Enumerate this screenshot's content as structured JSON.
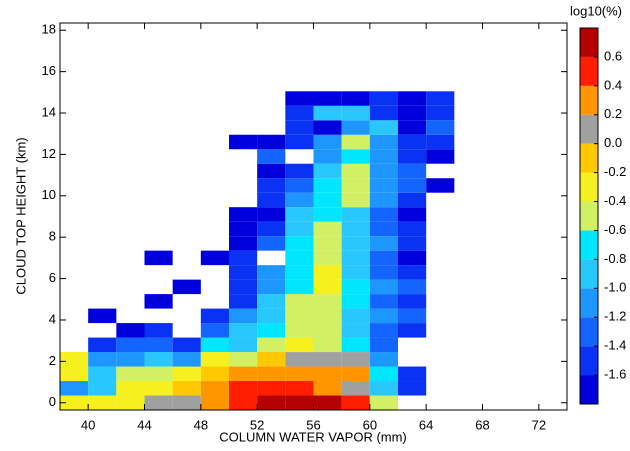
{
  "chart_data": {
    "type": "heatmap",
    "xlabel": "COLUMN WATER VAPOR (mm)",
    "ylabel": "CLOUD TOP HEIGHT (km)",
    "xlim": [
      38,
      74
    ],
    "xticks": [
      40,
      44,
      48,
      52,
      56,
      60,
      64,
      68,
      72
    ],
    "ylim": [
      -0.35,
      18.35
    ],
    "yticks": [
      0,
      2,
      4,
      6,
      8,
      10,
      12,
      14,
      16,
      18
    ],
    "xbins": [
      38,
      40,
      42,
      44,
      46,
      48,
      50,
      52,
      54,
      56,
      58,
      60,
      62,
      64,
      66
    ],
    "ybins": [
      -0.35,
      0.35,
      1.05,
      1.75,
      2.45,
      3.15,
      3.85,
      4.55,
      5.25,
      5.95,
      6.65,
      7.35,
      8.05,
      8.75,
      9.45,
      10.15,
      10.85,
      11.55,
      12.25,
      12.95,
      13.65,
      14.35,
      15.05
    ],
    "z": [
      [
        -0.3,
        -0.3,
        -0.3,
        0.1,
        0.1,
        0.3,
        0.5,
        0.7,
        0.7,
        0.7,
        0.5,
        -0.5,
        null,
        null
      ],
      [
        -1.1,
        -0.9,
        -0.3,
        -0.3,
        -0.1,
        0.3,
        0.5,
        0.5,
        0.5,
        0.3,
        0.1,
        -0.9,
        -1.5,
        null
      ],
      [
        -0.3,
        -0.9,
        -0.5,
        -0.5,
        -0.3,
        -0.1,
        0.3,
        0.3,
        0.3,
        0.3,
        0.3,
        -0.7,
        -1.5,
        null
      ],
      [
        -0.3,
        -1.1,
        -1.1,
        -0.9,
        -1.1,
        -0.3,
        -0.5,
        -0.1,
        0.1,
        0.1,
        0.1,
        -1.1,
        null,
        null
      ],
      [
        null,
        -1.5,
        -1.3,
        -1.3,
        -1.5,
        -0.7,
        -0.9,
        -0.5,
        -0.3,
        -0.5,
        -0.7,
        -1.3,
        null,
        null
      ],
      [
        null,
        null,
        -1.7,
        -1.5,
        null,
        -1.3,
        -0.9,
        -0.7,
        -0.5,
        -0.5,
        -0.9,
        -1.3,
        -1.5,
        null
      ],
      [
        null,
        -1.7,
        null,
        null,
        null,
        -1.5,
        -1.1,
        -0.9,
        -0.5,
        -0.5,
        -0.9,
        -1.1,
        -1.3,
        null
      ],
      [
        null,
        null,
        null,
        -1.7,
        null,
        null,
        -1.5,
        -0.9,
        -0.5,
        -0.5,
        -0.7,
        -1.3,
        -1.5,
        null
      ],
      [
        null,
        null,
        null,
        null,
        -1.7,
        null,
        -1.5,
        -1.1,
        -0.7,
        -0.3,
        -0.7,
        -1.1,
        -1.3,
        null
      ],
      [
        null,
        null,
        null,
        null,
        null,
        null,
        -1.5,
        -1.1,
        -0.7,
        -0.3,
        -0.9,
        -1.3,
        -1.5,
        null
      ],
      [
        null,
        null,
        null,
        -1.7,
        null,
        -1.7,
        -1.5,
        null,
        -0.7,
        -0.5,
        -0.9,
        -1.3,
        -1.7,
        null
      ],
      [
        null,
        null,
        null,
        null,
        null,
        null,
        -1.7,
        -1.3,
        -0.7,
        -0.5,
        -0.9,
        -1.1,
        -1.5,
        null
      ],
      [
        null,
        null,
        null,
        null,
        null,
        null,
        -1.7,
        -1.5,
        -0.9,
        -0.5,
        -0.9,
        -1.3,
        -1.5,
        null
      ],
      [
        null,
        null,
        null,
        null,
        null,
        null,
        -1.7,
        -1.7,
        -0.9,
        -0.7,
        -0.9,
        -1.3,
        -1.7,
        null
      ],
      [
        null,
        null,
        null,
        null,
        null,
        null,
        null,
        -1.5,
        -1.1,
        -0.7,
        -0.5,
        -1.1,
        -1.5,
        null
      ],
      [
        null,
        null,
        null,
        null,
        null,
        null,
        null,
        -1.5,
        -1.3,
        -0.7,
        -0.5,
        -1.1,
        -1.3,
        -1.7
      ],
      [
        null,
        null,
        null,
        null,
        null,
        null,
        null,
        -1.7,
        -1.5,
        -0.9,
        -0.5,
        -1.1,
        -1.3,
        null
      ],
      [
        null,
        null,
        null,
        null,
        null,
        null,
        null,
        -1.3,
        null,
        -1.1,
        -0.7,
        -1.1,
        -1.5,
        -1.7
      ],
      [
        null,
        null,
        null,
        null,
        null,
        null,
        -1.7,
        -1.7,
        -1.5,
        -1.1,
        -0.5,
        -1.1,
        -1.5,
        -1.5
      ],
      [
        null,
        null,
        null,
        null,
        null,
        null,
        null,
        null,
        -1.5,
        -1.7,
        -1.1,
        -0.9,
        -1.7,
        -1.3
      ],
      [
        null,
        null,
        null,
        null,
        null,
        null,
        null,
        null,
        -1.5,
        -0.9,
        -0.9,
        -1.5,
        -1.7,
        -1.5
      ],
      [
        null,
        null,
        null,
        null,
        null,
        null,
        null,
        null,
        -1.7,
        -1.7,
        -1.7,
        -1.5,
        -1.7,
        -1.5
      ]
    ],
    "colorbar": {
      "label": "log10(%)",
      "levels": [
        -1.8,
        -1.6,
        -1.4,
        -1.2,
        -1,
        -0.8,
        -0.6,
        -0.4,
        -0.2,
        0,
        0.2,
        0.4,
        0.6,
        0.8
      ],
      "colors": [
        "#0000dd",
        "#0a32f5",
        "#1464ff",
        "#1e96ff",
        "#28c8ff",
        "#00e6ff",
        "#d2f064",
        "#f5f01e",
        "#ffc800",
        "#a0a0a0",
        "#ff9600",
        "#ff1e00",
        "#b40000"
      ],
      "ticks": [
        -1.6,
        -1.4,
        -1.2,
        {
          "value": -1,
          "label": "-1.0"
        },
        -0.8,
        -0.6,
        -0.4,
        -0.2,
        {
          "value": 0,
          "label": "0.0"
        },
        0.2,
        0.4,
        0.6
      ]
    }
  }
}
